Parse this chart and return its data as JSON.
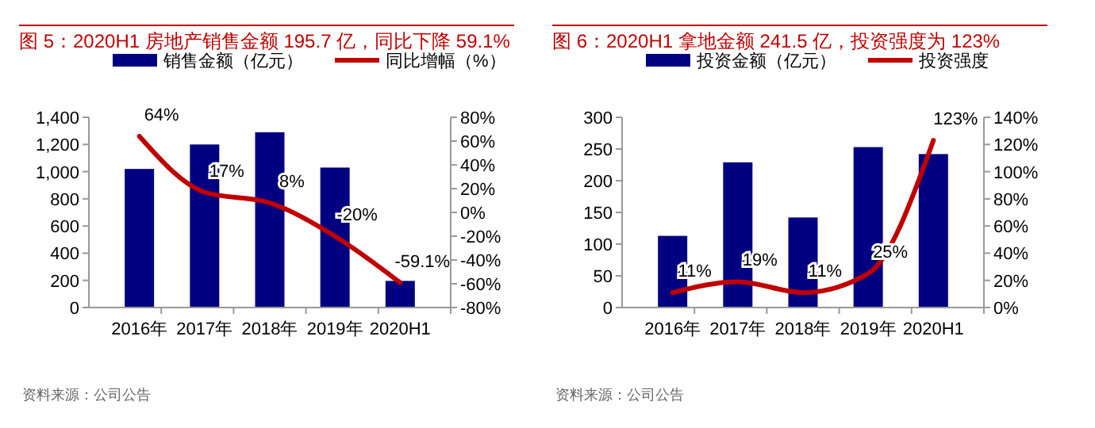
{
  "chart_data": [
    {
      "type": "bar",
      "title": "图 5：2020H1 房地产销售金额 195.7 亿，同比下降 59.1%",
      "categories": [
        "2016年",
        "2017年",
        "2018年",
        "2019年",
        "2020H1"
      ],
      "series": [
        {
          "name": "销售金额（亿元）",
          "color": "#000080",
          "values": [
            1020,
            1200,
            1290,
            1030,
            196
          ]
        },
        {
          "name": "同比增幅（%）",
          "type": "line",
          "axis": "y2",
          "color": "#c00000",
          "values": [
            64,
            17,
            8,
            -20,
            -59.1
          ],
          "value_labels": [
            "64%",
            "17%",
            "8%",
            "-20%",
            "-59.1%"
          ]
        }
      ],
      "ylim": [
        0,
        1400
      ],
      "yticks": [
        {
          "value": 0,
          "label": "0"
        },
        {
          "value": 200,
          "label": "200"
        },
        {
          "value": 400,
          "label": "400"
        },
        {
          "value": 600,
          "label": "600"
        },
        {
          "value": 800,
          "label": "800"
        },
        {
          "value": 1000,
          "label": "1,000"
        },
        {
          "value": 1200,
          "label": "1,200"
        },
        {
          "value": 1400,
          "label": "1,400"
        }
      ],
      "y2lim": [
        -80,
        80
      ],
      "y2ticks": [
        {
          "value": -80,
          "label": "-80%"
        },
        {
          "value": -60,
          "label": "-60%"
        },
        {
          "value": -40,
          "label": "-40%"
        },
        {
          "value": -20,
          "label": "-20%"
        },
        {
          "value": 0,
          "label": "0%"
        },
        {
          "value": 20,
          "label": "20%"
        },
        {
          "value": 40,
          "label": "40%"
        },
        {
          "value": 60,
          "label": "60%"
        },
        {
          "value": 80,
          "label": "80%"
        }
      ],
      "legend": "top",
      "marker": "none",
      "annotations": [
        "资料来源：公司公告"
      ]
    },
    {
      "type": "bar",
      "title": "图 6：2020H1 拿地金额 241.5 亿，投资强度为 123%",
      "categories": [
        "2016年",
        "2017年",
        "2018年",
        "2019年",
        "2020H1"
      ],
      "series": [
        {
          "name": "投资金额（亿元）",
          "color": "#000080",
          "values": [
            113,
            229,
            142,
            253,
            242
          ]
        },
        {
          "name": "投资强度",
          "type": "line",
          "axis": "y2",
          "color": "#c00000",
          "values": [
            11,
            19,
            11,
            25,
            123
          ],
          "value_labels": [
            "11%",
            "19%",
            "11%",
            "25%",
            "123%"
          ]
        }
      ],
      "ylim": [
        0,
        300
      ],
      "yticks": [
        0,
        50,
        100,
        150,
        200,
        250,
        300
      ],
      "y2lim": [
        0,
        140
      ],
      "y2ticks": [
        {
          "value": 0,
          "label": "0%"
        },
        {
          "value": 20,
          "label": "20%"
        },
        {
          "value": 40,
          "label": "40%"
        },
        {
          "value": 60,
          "label": "60%"
        },
        {
          "value": 80,
          "label": "80%"
        },
        {
          "value": 100,
          "label": "100%"
        },
        {
          "value": 120,
          "label": "120%"
        },
        {
          "value": 140,
          "label": "140%"
        }
      ],
      "legend": "top",
      "marker": "none",
      "annotations": [
        "资料来源：公司公告"
      ]
    }
  ]
}
